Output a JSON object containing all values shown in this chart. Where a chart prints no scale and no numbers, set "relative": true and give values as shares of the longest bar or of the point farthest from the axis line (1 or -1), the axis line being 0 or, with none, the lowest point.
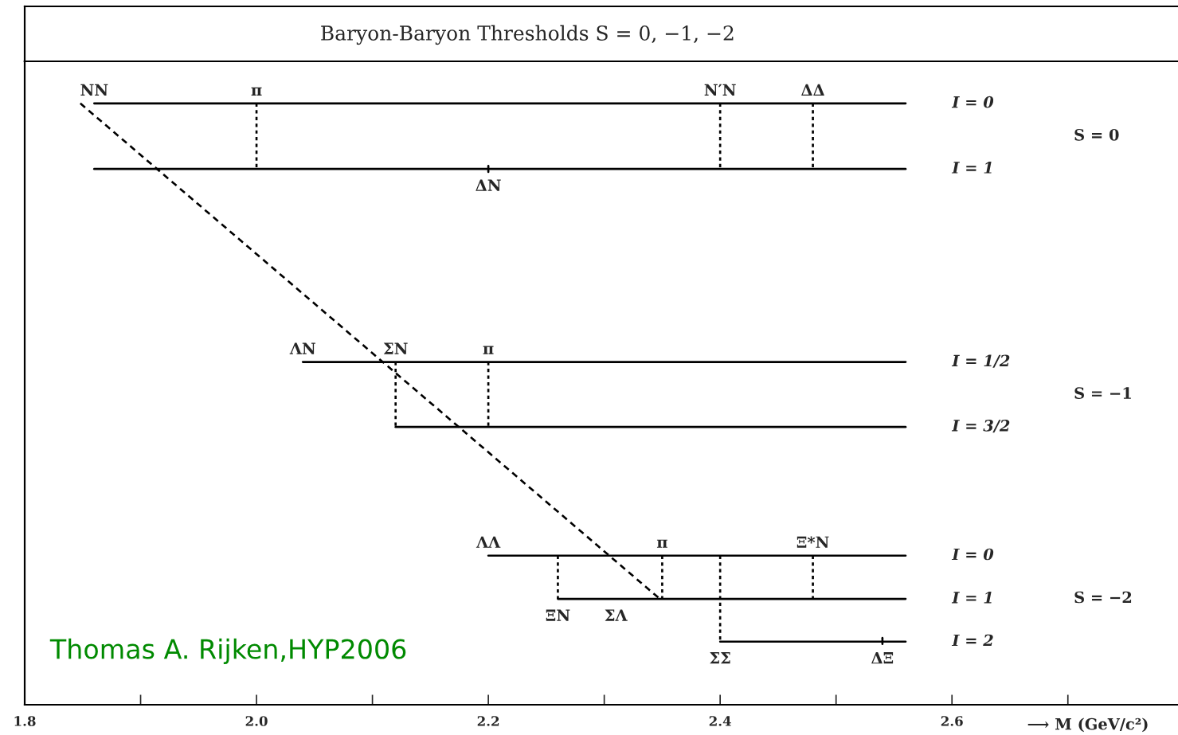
{
  "chart_data": {
    "type": "line",
    "title": "Baryon-Baryon Thresholds S = 0, −1, −2",
    "xlabel": "⟶ M (GeV/c²)",
    "relative": true,
    "tick_labels": "x",
    "xlim": [
      1.8,
      2.795
    ],
    "xticks": [
      {
        "value": 1.8,
        "label": "1.8"
      },
      {
        "value": 1.9,
        "label": null
      },
      {
        "value": 2,
        "label": "2.0"
      },
      {
        "value": 2.1,
        "label": null
      },
      {
        "value": 2.2,
        "label": "2.2"
      },
      {
        "value": 2.3,
        "label": null
      },
      {
        "value": 2.4,
        "label": "2.4"
      },
      {
        "value": 2.5,
        "label": null
      },
      {
        "value": 2.6,
        "label": "2.6"
      },
      {
        "value": 2.7,
        "label": null
      }
    ],
    "series": [
      {
        "name": "I = 0",
        "color": "#000000",
        "x": [
          1.86,
          2.56
        ],
        "values": [
          1.0,
          1.0
        ]
      },
      {
        "name": "I = 1",
        "color": "#000000",
        "x": [
          1.86,
          2.56
        ],
        "values": [
          0.891,
          0.891
        ]
      },
      {
        "name": "I = 1/2",
        "color": "#000000",
        "x": [
          2.04,
          2.56
        ],
        "values": [
          0.57,
          0.57
        ]
      },
      {
        "name": "I = 3/2",
        "color": "#000000",
        "x": [
          2.12,
          2.56
        ],
        "values": [
          0.462,
          0.462
        ]
      },
      {
        "name": "I = 0",
        "color": "#000000",
        "x": [
          2.2,
          2.56
        ],
        "values": [
          0.248,
          0.248
        ]
      },
      {
        "name": "I = 1",
        "color": "#000000",
        "x": [
          2.26,
          2.56
        ],
        "values": [
          0.176,
          0.176
        ]
      },
      {
        "name": "I = 2",
        "color": "#000000",
        "x": [
          2.4,
          2.56
        ],
        "values": [
          0.105,
          0.105
        ]
      },
      {
        "color": "#000000",
        "line_style": "dotted",
        "x": [
          2.0,
          2.0
        ],
        "values": [
          1.0,
          0.891
        ]
      },
      {
        "color": "#000000",
        "line_style": "dotted",
        "x": [
          2.4,
          2.4
        ],
        "values": [
          1.0,
          0.891
        ]
      },
      {
        "color": "#000000",
        "line_style": "dotted",
        "x": [
          2.48,
          2.48
        ],
        "values": [
          1.0,
          0.891
        ]
      },
      {
        "color": "#000000",
        "line_style": "dotted",
        "x": [
          2.12,
          2.12
        ],
        "values": [
          0.57,
          0.462
        ]
      },
      {
        "color": "#000000",
        "line_style": "dotted",
        "x": [
          2.2,
          2.2
        ],
        "values": [
          0.57,
          0.462
        ]
      },
      {
        "color": "#000000",
        "line_style": "dotted",
        "x": [
          2.26,
          2.26
        ],
        "values": [
          0.248,
          0.176
        ]
      },
      {
        "color": "#000000",
        "line_style": "dotted",
        "x": [
          2.35,
          2.35
        ],
        "values": [
          0.248,
          0.176
        ]
      },
      {
        "color": "#000000",
        "line_style": "dotted",
        "x": [
          2.4,
          2.4
        ],
        "values": [
          0.248,
          0.105
        ]
      },
      {
        "color": "#000000",
        "line_style": "dotted",
        "x": [
          2.48,
          2.48
        ],
        "values": [
          0.248,
          0.176
        ]
      },
      {
        "color": "#000000",
        "line_style": "dashed",
        "x": [
          1.848,
          2.348
        ],
        "values": [
          1.0,
          0.176
        ]
      },
      {
        "color": "#000000",
        "x": [
          2.2,
          2.2
        ],
        "values": [
          0.886,
          0.896
        ]
      },
      {
        "color": "#000000",
        "x": [
          2.54,
          2.54
        ],
        "values": [
          0.101,
          0.111
        ]
      }
    ],
    "annotations": [
      {
        "text": "NN",
        "x": 1.86,
        "y": 1.0
      },
      {
        "text": "π",
        "x": 2.0,
        "y": 1.0
      },
      {
        "text": "N′N",
        "x": 2.4,
        "y": 1.0
      },
      {
        "text": "ΔΔ",
        "x": 2.48,
        "y": 1.0
      },
      {
        "text": "ΔN",
        "x": 2.2,
        "y": 0.891
      },
      {
        "text": "ΛN",
        "x": 2.04,
        "y": 0.57
      },
      {
        "text": "ΣN",
        "x": 2.12,
        "y": 0.57
      },
      {
        "text": "π",
        "x": 2.2,
        "y": 0.57
      },
      {
        "text": "ΛΛ",
        "x": 2.2,
        "y": 0.248
      },
      {
        "text": "π",
        "x": 2.35,
        "y": 0.248
      },
      {
        "text": "Ξ*N",
        "x": 2.48,
        "y": 0.248
      },
      {
        "text": "ΞN",
        "x": 2.26,
        "y": 0.176
      },
      {
        "text": "ΣΛ",
        "x": 2.31,
        "y": 0.176
      },
      {
        "text": "ΣΣ",
        "x": 2.4,
        "y": 0.105
      },
      {
        "text": "ΔΞ",
        "x": 2.54,
        "y": 0.105
      },
      "S = 0",
      "S = −1",
      "S = −2",
      "Thomas A. Rijken,HYP2006"
    ]
  }
}
